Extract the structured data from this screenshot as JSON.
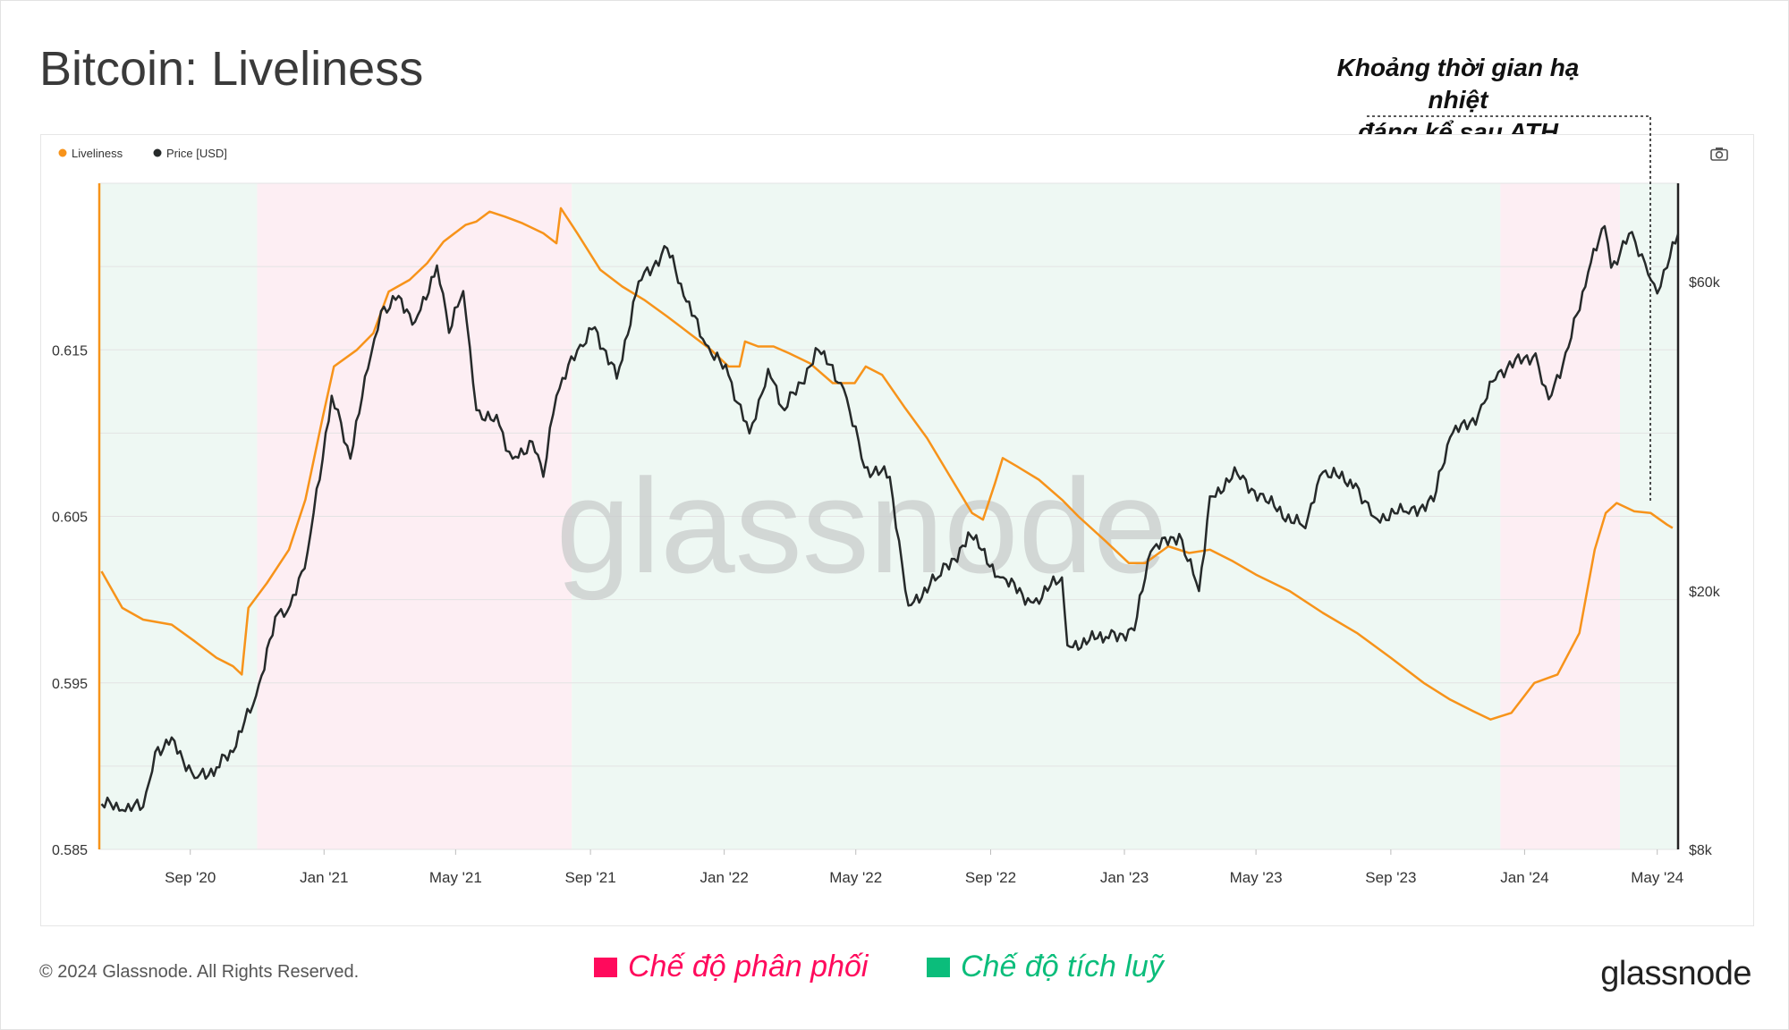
{
  "title": "Bitcoin: Liveliness",
  "annotation": {
    "line1": "Khoảng thời gian hạ nhiệt",
    "line2": "đáng kể sau ATH"
  },
  "footer": {
    "copyright": "© 2024 Glassnode. All Rights Reserved.",
    "brand": "glassnode",
    "distribution_label": "Chế độ phân phối",
    "accumulation_label": "Chế độ tích luỹ"
  },
  "colors": {
    "liveliness": "#f7931a",
    "price": "#262a2a",
    "distribution": "#ff0a5c",
    "accumulation": "#0bbd7b",
    "distribution_bg": "#fdeef3",
    "accumulation_bg": "#eef8f3"
  },
  "watermark": "glassnode",
  "chart_data": {
    "type": "line",
    "title": "Bitcoin: Liveliness",
    "legend": [
      {
        "name": "Liveliness",
        "color": "#f7931a"
      },
      {
        "name": "Price [USD]",
        "color": "#262a2a"
      }
    ],
    "legend_position": "top-left",
    "x_ticks": [
      "Sep '20",
      "Jan '21",
      "May '21",
      "Sep '21",
      "Jan '22",
      "May '22",
      "Sep '22",
      "Jan '23",
      "May '23",
      "Sep '23",
      "Jan '24",
      "May '24"
    ],
    "x_range": [
      "2020-06-10",
      "2024-05-20"
    ],
    "y_left": {
      "label": "Liveliness",
      "ticks": [
        "0.585",
        "0.595",
        "0.605",
        "0.615"
      ],
      "range": [
        0.585,
        0.625
      ]
    },
    "y_right": {
      "label": "Price [USD]",
      "scale": "log",
      "ticks": [
        "$8k",
        "$20k",
        "$60k"
      ],
      "tick_values": [
        8000,
        20000,
        60000
      ],
      "range": [
        8000,
        85000
      ]
    },
    "grid": true,
    "regimes": [
      {
        "type": "accumulation",
        "start": "2020-06-10",
        "end": "2020-11-01"
      },
      {
        "type": "distribution",
        "start": "2020-11-01",
        "end": "2021-08-15"
      },
      {
        "type": "accumulation",
        "start": "2021-08-15",
        "end": "2023-12-10"
      },
      {
        "type": "distribution",
        "start": "2023-12-10",
        "end": "2024-03-28"
      },
      {
        "type": "accumulation",
        "start": "2024-03-28",
        "end": "2024-05-20"
      }
    ],
    "series": [
      {
        "name": "Liveliness",
        "axis": "left",
        "points": [
          [
            "2020-06-12",
            0.6017
          ],
          [
            "2020-07-01",
            0.5995
          ],
          [
            "2020-07-20",
            0.5988
          ],
          [
            "2020-08-15",
            0.5985
          ],
          [
            "2020-09-05",
            0.5975
          ],
          [
            "2020-09-25",
            0.5965
          ],
          [
            "2020-10-10",
            0.596
          ],
          [
            "2020-10-18",
            0.5955
          ],
          [
            "2020-10-24",
            0.5995
          ],
          [
            "2020-11-10",
            0.601
          ],
          [
            "2020-11-30",
            0.603
          ],
          [
            "2020-12-15",
            0.606
          ],
          [
            "2020-12-31",
            0.611
          ],
          [
            "2021-01-10",
            0.614
          ],
          [
            "2021-01-31",
            0.615
          ],
          [
            "2021-02-15",
            0.616
          ],
          [
            "2021-03-01",
            0.6185
          ],
          [
            "2021-03-20",
            0.6192
          ],
          [
            "2021-04-05",
            0.6202
          ],
          [
            "2021-04-20",
            0.6215
          ],
          [
            "2021-05-10",
            0.6225
          ],
          [
            "2021-05-20",
            0.6227
          ],
          [
            "2021-06-01",
            0.6233
          ],
          [
            "2021-06-15",
            0.623
          ],
          [
            "2021-07-01",
            0.6226
          ],
          [
            "2021-07-20",
            0.622
          ],
          [
            "2021-08-01",
            0.6214
          ],
          [
            "2021-08-05",
            0.6235
          ],
          [
            "2021-08-20",
            0.622
          ],
          [
            "2021-09-10",
            0.6198
          ],
          [
            "2021-09-30",
            0.6188
          ],
          [
            "2021-10-20",
            0.618
          ],
          [
            "2021-11-10",
            0.617
          ],
          [
            "2021-11-30",
            0.616
          ],
          [
            "2021-12-20",
            0.615
          ],
          [
            "2022-01-05",
            0.614
          ],
          [
            "2022-01-15",
            0.614
          ],
          [
            "2022-01-20",
            0.6155
          ],
          [
            "2022-02-01",
            0.6152
          ],
          [
            "2022-02-15",
            0.6152
          ],
          [
            "2022-03-01",
            0.6148
          ],
          [
            "2022-03-20",
            0.6142
          ],
          [
            "2022-04-10",
            0.613
          ],
          [
            "2022-04-30",
            0.613
          ],
          [
            "2022-05-10",
            0.614
          ],
          [
            "2022-05-25",
            0.6135
          ],
          [
            "2022-06-15",
            0.6115
          ],
          [
            "2022-07-05",
            0.6097
          ],
          [
            "2022-07-25",
            0.6075
          ],
          [
            "2022-08-15",
            0.6052
          ],
          [
            "2022-08-25",
            0.6048
          ],
          [
            "2022-09-05",
            0.607
          ],
          [
            "2022-09-12",
            0.6085
          ],
          [
            "2022-09-25",
            0.608
          ],
          [
            "2022-10-15",
            0.6072
          ],
          [
            "2022-11-05",
            0.606
          ],
          [
            "2022-11-20",
            0.605
          ],
          [
            "2022-12-15",
            0.6035
          ],
          [
            "2023-01-05",
            0.6022
          ],
          [
            "2023-01-20",
            0.6022
          ],
          [
            "2023-02-10",
            0.6032
          ],
          [
            "2023-03-01",
            0.6028
          ],
          [
            "2023-03-20",
            0.603
          ],
          [
            "2023-04-10",
            0.6023
          ],
          [
            "2023-05-01",
            0.6015
          ],
          [
            "2023-06-01",
            0.6005
          ],
          [
            "2023-07-01",
            0.5992
          ],
          [
            "2023-08-01",
            0.598
          ],
          [
            "2023-09-01",
            0.5965
          ],
          [
            "2023-10-01",
            0.595
          ],
          [
            "2023-10-25",
            0.594
          ],
          [
            "2023-11-15",
            0.5933
          ],
          [
            "2023-12-01",
            0.5928
          ],
          [
            "2023-12-20",
            0.5932
          ],
          [
            "2024-01-10",
            0.595
          ],
          [
            "2024-01-31",
            0.5955
          ],
          [
            "2024-02-20",
            0.598
          ],
          [
            "2024-03-05",
            0.603
          ],
          [
            "2024-03-15",
            0.6052
          ],
          [
            "2024-03-25",
            0.6058
          ],
          [
            "2024-04-10",
            0.6053
          ],
          [
            "2024-04-25",
            0.6052
          ],
          [
            "2024-05-10",
            0.6045
          ],
          [
            "2024-05-15",
            0.6043
          ]
        ]
      },
      {
        "name": "Price [USD]",
        "axis": "right",
        "points": [
          [
            "2020-06-12",
            9400
          ],
          [
            "2020-07-01",
            9200
          ],
          [
            "2020-07-20",
            9300
          ],
          [
            "2020-07-31",
            11300
          ],
          [
            "2020-08-15",
            11900
          ],
          [
            "2020-09-05",
            10300
          ],
          [
            "2020-09-25",
            10700
          ],
          [
            "2020-10-10",
            11300
          ],
          [
            "2020-10-31",
            13800
          ],
          [
            "2020-11-20",
            18500
          ],
          [
            "2020-12-01",
            19000
          ],
          [
            "2020-12-17",
            23000
          ],
          [
            "2021-01-08",
            40000
          ],
          [
            "2021-01-25",
            32000
          ],
          [
            "2021-02-10",
            44000
          ],
          [
            "2021-02-22",
            54000
          ],
          [
            "2021-03-10",
            57000
          ],
          [
            "2021-03-25",
            52000
          ],
          [
            "2021-04-14",
            63500
          ],
          [
            "2021-04-25",
            50000
          ],
          [
            "2021-05-08",
            58000
          ],
          [
            "2021-05-20",
            38000
          ],
          [
            "2021-06-10",
            36000
          ],
          [
            "2021-06-22",
            32000
          ],
          [
            "2021-07-10",
            34000
          ],
          [
            "2021-07-20",
            30000
          ],
          [
            "2021-08-01",
            40000
          ],
          [
            "2021-08-20",
            47000
          ],
          [
            "2021-09-05",
            51000
          ],
          [
            "2021-09-25",
            42500
          ],
          [
            "2021-10-15",
            60000
          ],
          [
            "2021-11-10",
            67500
          ],
          [
            "2021-11-25",
            57000
          ],
          [
            "2021-12-15",
            48000
          ],
          [
            "2022-01-05",
            43000
          ],
          [
            "2022-01-24",
            35000
          ],
          [
            "2022-02-10",
            44000
          ],
          [
            "2022-02-25",
            38000
          ],
          [
            "2022-03-28",
            47000
          ],
          [
            "2022-04-20",
            41000
          ],
          [
            "2022-05-09",
            31000
          ],
          [
            "2022-06-01",
            30000
          ],
          [
            "2022-06-18",
            19000
          ],
          [
            "2022-07-15",
            21000
          ],
          [
            "2022-08-14",
            24300
          ],
          [
            "2022-09-10",
            21000
          ],
          [
            "2022-10-10",
            19200
          ],
          [
            "2022-11-05",
            21000
          ],
          [
            "2022-11-10",
            16500
          ],
          [
            "2022-12-15",
            17000
          ],
          [
            "2023-01-10",
            17400
          ],
          [
            "2023-01-25",
            23000
          ],
          [
            "2023-02-20",
            24500
          ],
          [
            "2023-03-10",
            20000
          ],
          [
            "2023-03-20",
            28000
          ],
          [
            "2023-04-14",
            30300
          ],
          [
            "2023-05-10",
            27500
          ],
          [
            "2023-06-15",
            25000
          ],
          [
            "2023-07-01",
            30500
          ],
          [
            "2023-07-31",
            29300
          ],
          [
            "2023-08-17",
            26000
          ],
          [
            "2023-09-15",
            26500
          ],
          [
            "2023-10-10",
            27500
          ],
          [
            "2023-10-25",
            34500
          ],
          [
            "2023-11-20",
            37500
          ],
          [
            "2023-12-08",
            43500
          ],
          [
            "2024-01-11",
            46500
          ],
          [
            "2024-01-23",
            39500
          ],
          [
            "2024-02-10",
            47500
          ],
          [
            "2024-02-28",
            62000
          ],
          [
            "2024-03-14",
            73000
          ],
          [
            "2024-03-20",
            63000
          ],
          [
            "2024-04-08",
            71500
          ],
          [
            "2024-04-20",
            64000
          ],
          [
            "2024-05-01",
            57500
          ],
          [
            "2024-05-10",
            63000
          ],
          [
            "2024-05-20",
            71000
          ]
        ]
      }
    ]
  }
}
